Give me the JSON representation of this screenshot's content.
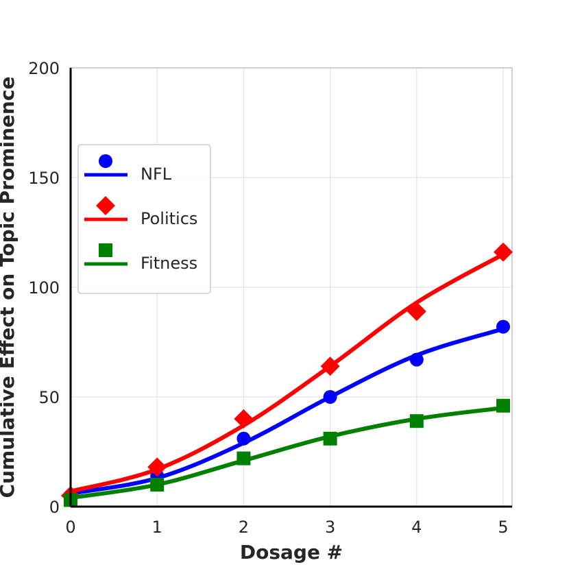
{
  "chart_data": {
    "type": "line",
    "title": "",
    "xlabel": "Dosage #",
    "ylabel": "Cumulative Effect on Topic Prominence",
    "xlim": [
      0,
      5.1
    ],
    "ylim": [
      0,
      200
    ],
    "x_ticks": [
      "0",
      "1",
      "2",
      "3",
      "4",
      "5"
    ],
    "y_ticks": [
      "0",
      "50",
      "100",
      "150",
      "200"
    ],
    "grid": true,
    "legend_position": "upper-left",
    "series": [
      {
        "name": "NFL",
        "color": "#0000ff",
        "marker": "circle",
        "x": [
          0,
          1,
          2,
          3,
          4,
          5
        ],
        "values": [
          5,
          14,
          31,
          50,
          67,
          82
        ],
        "fit": [
          6,
          13,
          29,
          50,
          69,
          81
        ]
      },
      {
        "name": "Politics",
        "color": "#ff0000",
        "marker": "diamond",
        "x": [
          0,
          1,
          2,
          3,
          4,
          5
        ],
        "values": [
          5,
          18,
          40,
          64,
          89,
          116
        ],
        "fit": [
          7,
          17,
          37,
          64,
          93,
          115
        ]
      },
      {
        "name": "Fitness",
        "color": "#008000",
        "marker": "square",
        "x": [
          0,
          1,
          2,
          3,
          4,
          5
        ],
        "values": [
          3,
          10,
          22,
          31,
          39,
          46
        ],
        "fit": [
          4,
          10,
          21,
          32,
          40,
          45
        ]
      }
    ]
  }
}
